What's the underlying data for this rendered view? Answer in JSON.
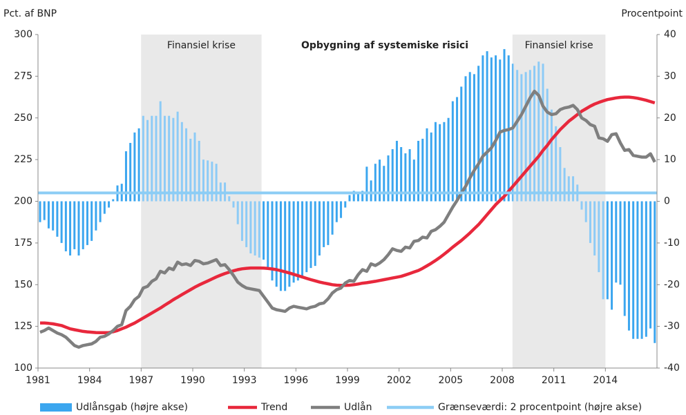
{
  "chart_data": {
    "type": "combo",
    "title": "Opbygning af systemiske risici",
    "y_label": "Pct. af BNP",
    "y2_label": "Procentpoint",
    "xlim": [
      1981,
      2017
    ],
    "xticks": [
      1981,
      1984,
      1987,
      1990,
      1993,
      1996,
      1999,
      2002,
      2005,
      2008,
      2011,
      2014
    ],
    "ylim": [
      100,
      300
    ],
    "yticks": [
      100,
      125,
      150,
      175,
      200,
      225,
      250,
      275,
      300
    ],
    "y2lim": [
      -40,
      40
    ],
    "y2ticks": [
      -40,
      -30,
      -20,
      -10,
      0,
      10,
      20,
      30,
      40
    ],
    "legend": "bottom",
    "shaded_regions": [
      {
        "xlim": [
          1987,
          1994
        ],
        "label": "Finansiel krise"
      },
      {
        "xlim": [
          2008.6,
          2014
        ],
        "label": "Finansiel krise"
      }
    ],
    "x": [
      1981,
      1981.25,
      1981.5,
      1981.75,
      1982,
      1982.25,
      1982.5,
      1982.75,
      1983,
      1983.25,
      1983.5,
      1983.75,
      1984,
      1984.25,
      1984.5,
      1984.75,
      1985,
      1985.25,
      1985.5,
      1985.75,
      1986,
      1986.25,
      1986.5,
      1986.75,
      1987,
      1987.25,
      1987.5,
      1987.75,
      1988,
      1988.25,
      1988.5,
      1988.75,
      1989,
      1989.25,
      1989.5,
      1989.75,
      1990,
      1990.25,
      1990.5,
      1990.75,
      1991,
      1991.25,
      1991.5,
      1991.75,
      1992,
      1992.25,
      1992.5,
      1992.75,
      1993,
      1993.25,
      1993.5,
      1993.75,
      1994,
      1994.25,
      1994.5,
      1994.75,
      1995,
      1995.25,
      1995.5,
      1995.75,
      1996,
      1996.25,
      1996.5,
      1996.75,
      1997,
      1997.25,
      1997.5,
      1997.75,
      1998,
      1998.25,
      1998.5,
      1998.75,
      1999,
      1999.25,
      1999.5,
      1999.75,
      2000,
      2000.25,
      2000.5,
      2000.75,
      2001,
      2001.25,
      2001.5,
      2001.75,
      2002,
      2002.25,
      2002.5,
      2002.75,
      2003,
      2003.25,
      2003.5,
      2003.75,
      2004,
      2004.25,
      2004.5,
      2004.75,
      2005,
      2005.25,
      2005.5,
      2005.75,
      2006,
      2006.25,
      2006.5,
      2006.75,
      2007,
      2007.25,
      2007.5,
      2007.75,
      2008,
      2008.25,
      2008.5,
      2008.75,
      2009,
      2009.25,
      2009.5,
      2009.75,
      2010,
      2010.25,
      2010.5,
      2010.75,
      2011,
      2011.25,
      2011.5,
      2011.75,
      2012,
      2012.25,
      2012.5,
      2012.75,
      2013,
      2013.25,
      2013.5,
      2013.75,
      2014,
      2014.25,
      2014.5,
      2014.75,
      2015,
      2015.25,
      2015.5,
      2015.75,
      2016,
      2016.25,
      2016.5,
      2016.75
    ],
    "series": [
      {
        "name": "Udlånsgab (højre akse)",
        "type": "bar",
        "axis": "y2",
        "color": "#3ba6ef",
        "values": [
          -5,
          -4.5,
          -6.5,
          -7,
          -8.5,
          -10,
          -12,
          -13,
          -11.5,
          -13,
          -11.5,
          -10.5,
          -9.5,
          -7,
          -5,
          -3,
          -1.5,
          0.5,
          3.8,
          4.2,
          12,
          14,
          16.5,
          17.5,
          20.5,
          19.5,
          20.5,
          20.5,
          24,
          20.5,
          20.5,
          20,
          21.5,
          19,
          17.5,
          15,
          16.5,
          14.5,
          10,
          9.8,
          9.5,
          9,
          4.5,
          4.5,
          1.2,
          -1.5,
          -5.5,
          -9.5,
          -11,
          -12.5,
          -13,
          -13.5,
          -14,
          -16,
          -19,
          -20.5,
          -21.5,
          -21.5,
          -20.5,
          -19.5,
          -19,
          -18.5,
          -17,
          -16,
          -15.5,
          -13,
          -11,
          -10.5,
          -8,
          -5,
          -4,
          -1.5,
          1.5,
          2.5,
          2,
          2.5,
          8.3,
          5,
          9,
          10,
          8.5,
          11,
          12.5,
          14.5,
          13,
          11.5,
          12.5,
          10,
          14.5,
          15,
          17.5,
          16.5,
          19,
          18.5,
          19,
          20,
          24,
          25,
          27.5,
          30,
          31,
          30.5,
          32.5,
          35,
          36,
          34.5,
          35,
          34,
          36.5,
          35,
          33,
          31.5,
          30.5,
          31,
          31.5,
          32.5,
          33.5,
          33,
          27,
          22,
          18,
          13,
          8,
          6,
          6,
          4,
          -2,
          -5,
          -10,
          -13,
          -17,
          -23.5,
          -23.5,
          -26,
          -19.5,
          -20,
          -27.5,
          -31,
          -33,
          -33,
          -33,
          -32.5,
          -30.5,
          -34
        ]
      },
      {
        "name": "Trend",
        "type": "line",
        "color": "#e8283c",
        "values": [
          127,
          127,
          126.8,
          126.5,
          126,
          125.5,
          124.5,
          123.5,
          123,
          122.5,
          122,
          121.7,
          121.5,
          121.3,
          121.2,
          121.2,
          121.3,
          121.8,
          122.5,
          123.5,
          124.5,
          125.8,
          127,
          128.5,
          130,
          131.5,
          133,
          134.5,
          136,
          137.7,
          139.3,
          141,
          142.5,
          144,
          145.5,
          147,
          148.5,
          149.8,
          151,
          152.2,
          153.4,
          154.6,
          155.7,
          156.7,
          157.5,
          158.3,
          159,
          159.5,
          159.8,
          160,
          160,
          160,
          159.9,
          159.7,
          159.4,
          159,
          158.4,
          157.7,
          157,
          156.2,
          155.4,
          154.6,
          153.8,
          153,
          152.3,
          151.6,
          151,
          150.5,
          150,
          149.7,
          149.6,
          149.6,
          149.7,
          150,
          150.4,
          150.9,
          151.2,
          151.6,
          152,
          152.5,
          153,
          153.5,
          154,
          154.5,
          155,
          155.8,
          156.7,
          157.6,
          158.5,
          159.8,
          161.3,
          162.8,
          164.5,
          166.3,
          168.3,
          170.3,
          172.5,
          174.5,
          176.5,
          178.7,
          181,
          183.5,
          186,
          189,
          192,
          195,
          198,
          200.5,
          203,
          206,
          209,
          212,
          215,
          218,
          221,
          224,
          227,
          230.5,
          233.5,
          237,
          240,
          243,
          245.5,
          248,
          250,
          252,
          254,
          255.5,
          257,
          258.3,
          259.3,
          260.2,
          261,
          261.5,
          262,
          262.3,
          262.5,
          262.5,
          262.2,
          261.8,
          261.2,
          260.6,
          259.8,
          259
        ]
      },
      {
        "name": "Udlån",
        "type": "line",
        "color": "#7f7f7f",
        "values": [
          121.5,
          122.5,
          124,
          122.5,
          121,
          120,
          118.5,
          116,
          113.5,
          112.5,
          113.5,
          114,
          114.5,
          116,
          118.5,
          119,
          120.5,
          122.5,
          125,
          126,
          134.5,
          137,
          141,
          143,
          148,
          149,
          152,
          153.5,
          158,
          157,
          160,
          159,
          163.5,
          162,
          162.5,
          161.5,
          164.5,
          164,
          162.5,
          163,
          164,
          165,
          161.5,
          162,
          159,
          155.5,
          151.5,
          149.5,
          148,
          147.5,
          147,
          146.5,
          143,
          139.5,
          136,
          135,
          134.5,
          134,
          136,
          137,
          136.5,
          136,
          135.5,
          136.5,
          137,
          138.5,
          139,
          141.5,
          145,
          147,
          148,
          151,
          152.5,
          152,
          156,
          159,
          158,
          162.5,
          161.5,
          163,
          165,
          168,
          171.5,
          170.5,
          170,
          172.5,
          172,
          176,
          176.5,
          178.5,
          178,
          182,
          183,
          185,
          187.5,
          192,
          196.5,
          200.5,
          205,
          209,
          214,
          218.5,
          222.5,
          227,
          229.5,
          232,
          236.5,
          241.5,
          242.5,
          243,
          244,
          248,
          252,
          257,
          262,
          266,
          263.5,
          257,
          253.5,
          252,
          252.5,
          255,
          256,
          256.5,
          257.5,
          255,
          250,
          248.5,
          246,
          245,
          238,
          237.5,
          236,
          240,
          240.5,
          235,
          230.5,
          231,
          227.5,
          227,
          226.5,
          226.5,
          228.5,
          223.5
        ]
      },
      {
        "name": "Grænseværdi: 2 procentpoint (højre akse)",
        "type": "hline",
        "axis": "y2",
        "color": "#8ccdf5",
        "value": 2
      }
    ]
  }
}
